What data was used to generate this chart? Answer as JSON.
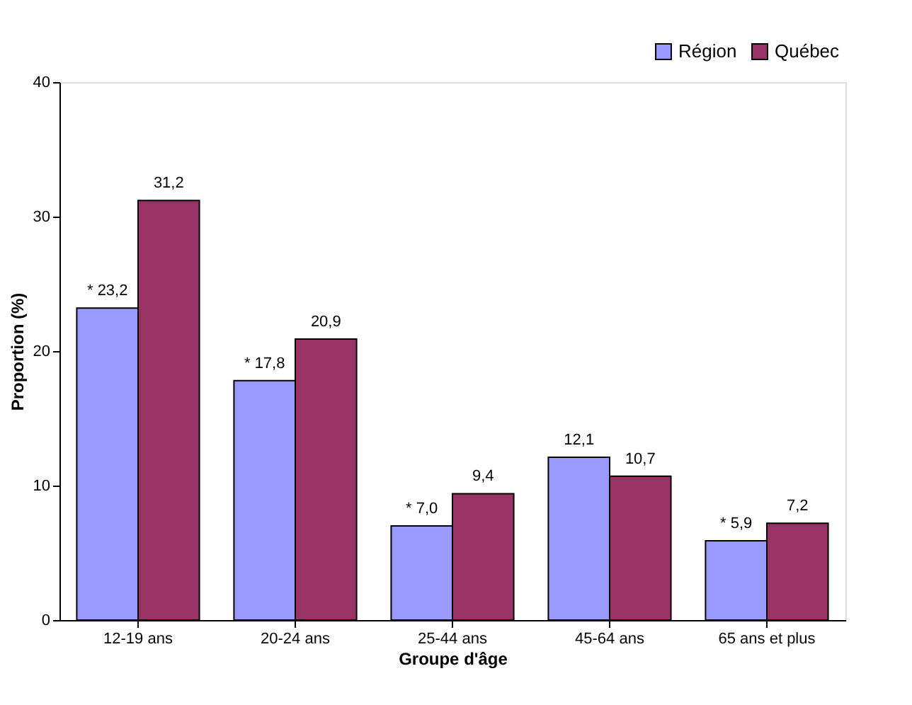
{
  "chart_data": {
    "type": "bar",
    "xlabel": "Groupe d'âge",
    "ylabel": "Proportion (%)",
    "categories": [
      "12-19 ans",
      "20-24 ans",
      "25-44 ans",
      "45-64 ans",
      "65 ans et plus"
    ],
    "series": [
      {
        "name": "Région",
        "color": "#9999ff",
        "values": [
          23.2,
          17.8,
          7.0,
          12.1,
          5.9
        ],
        "value_labels": [
          "* 23,2",
          "* 17,8",
          "* 7,0",
          "12,1",
          "* 5,9"
        ]
      },
      {
        "name": "Québec",
        "color": "#993366",
        "values": [
          31.2,
          20.9,
          9.4,
          10.7,
          7.2
        ],
        "value_labels": [
          "31,2",
          "20,9",
          "9,4",
          "10,7",
          "7,2"
        ]
      }
    ],
    "ylim": [
      0,
      40
    ],
    "yticks": [
      0,
      10,
      20,
      30,
      40
    ],
    "grid": false,
    "legend": "top right"
  }
}
